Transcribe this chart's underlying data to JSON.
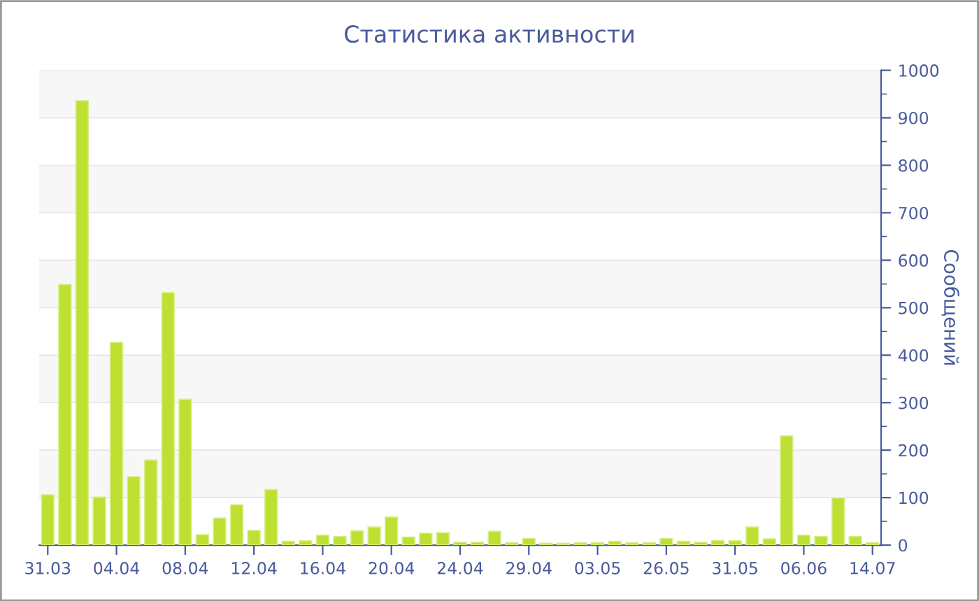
{
  "chart_data": {
    "type": "bar",
    "title": "Статистика активности",
    "ylabel": "Сообщений",
    "categories": [
      "31.03",
      null,
      null,
      null,
      "04.04",
      null,
      null,
      null,
      "08.04",
      null,
      null,
      null,
      "12.04",
      null,
      null,
      null,
      "16.04",
      null,
      null,
      null,
      "20.04",
      null,
      null,
      null,
      "24.04",
      null,
      null,
      null,
      "29.04",
      null,
      null,
      null,
      "03.05",
      null,
      null,
      null,
      "26.05",
      null,
      null,
      null,
      "31.05",
      null,
      null,
      null,
      "06.06",
      null,
      null,
      null,
      "14.07"
    ],
    "values": [
      106,
      549,
      936,
      101,
      427,
      144,
      179,
      532,
      307,
      22,
      57,
      85,
      31,
      117,
      8,
      9,
      21,
      18,
      30,
      38,
      59,
      17,
      25,
      26,
      6,
      6,
      29,
      5,
      14,
      4,
      4,
      5,
      5,
      8,
      5,
      5,
      14,
      8,
      6,
      10,
      9,
      38,
      13,
      230,
      21,
      18,
      99,
      18,
      5
    ],
    "color": "#bde032",
    "ylim": [
      0,
      1000
    ],
    "yticks": [
      0,
      100,
      200,
      300,
      400,
      500,
      600,
      700,
      800,
      900,
      1000
    ],
    "grid": "y"
  }
}
